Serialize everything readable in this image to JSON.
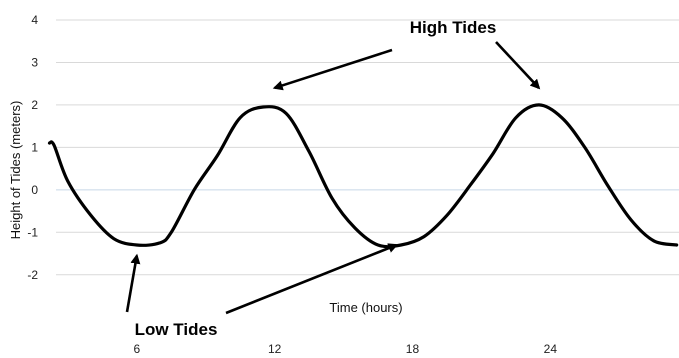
{
  "chart_data": {
    "type": "line",
    "xlabel": "Time (hours)",
    "ylabel": "Height of Tides (meters)",
    "x_ticks": [
      6,
      12,
      18,
      24
    ],
    "y_ticks": [
      4,
      3,
      2,
      1,
      0,
      -1,
      -2
    ],
    "xlim": [
      1.7,
      29.6
    ],
    "ylim": [
      -2.5,
      4
    ],
    "grid": "horizontal",
    "series": [
      {
        "color": "#000000",
        "x": [
          2.2,
          2.4,
          3.0,
          4.0,
          5.0,
          6.0,
          7.0,
          7.5,
          8.5,
          9.5,
          10.5,
          11.5,
          12.5,
          13.5,
          14.5,
          15.5,
          16.5,
          17.5,
          18.5,
          19.5,
          20.5,
          21.5,
          22.5,
          23.5,
          24.5,
          25.5,
          26.5,
          27.5,
          28.5,
          29.5
        ],
        "y": [
          1.1,
          1.05,
          0.2,
          -0.6,
          -1.15,
          -1.3,
          -1.25,
          -1.0,
          0.0,
          0.8,
          1.7,
          1.95,
          1.8,
          0.9,
          -0.2,
          -0.9,
          -1.3,
          -1.3,
          -1.1,
          -0.6,
          0.1,
          0.85,
          1.7,
          2.0,
          1.7,
          1.0,
          0.1,
          -0.7,
          -1.2,
          -1.3
        ]
      }
    ],
    "annotations": [
      {
        "text": "High Tides",
        "targets": [
          [
            12,
            2.4
          ],
          [
            23.5,
            2.4
          ]
        ]
      },
      {
        "text": "Low Tides",
        "targets": [
          [
            6,
            -1.55
          ],
          [
            17.3,
            -1.3
          ]
        ]
      }
    ]
  }
}
